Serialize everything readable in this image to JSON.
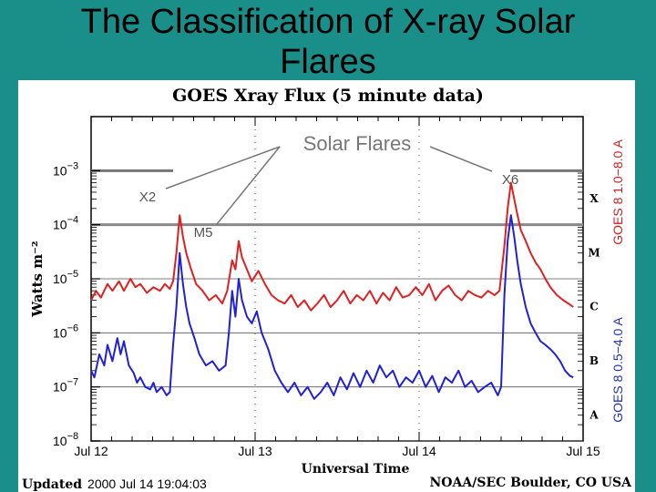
{
  "slide": {
    "title": "The Classification of X-ray Solar Flares"
  },
  "chart_data": {
    "type": "line",
    "title": "GOES Xray Flux (5 minute data)",
    "xlabel": "Universal Time",
    "ylabel": "Watts m⁻²",
    "x_tick_labels": [
      "Jul 12",
      "Jul 13",
      "Jul 14",
      "Jul 15"
    ],
    "x_range": [
      "2000-07-12 00:00",
      "2000-07-15 00:00"
    ],
    "y_scale": "log",
    "y_range": [
      1e-08,
      0.01
    ],
    "y_tick_labels": [
      {
        "base": "10",
        "exp": "−3",
        "value": 0.001
      },
      {
        "base": "10",
        "exp": "−4",
        "value": 0.0001
      },
      {
        "base": "10",
        "exp": "−5",
        "value": 1e-05
      },
      {
        "base": "10",
        "exp": "−6",
        "value": 1e-06
      },
      {
        "base": "10",
        "exp": "−7",
        "value": 1e-07
      },
      {
        "base": "10",
        "exp": "−8",
        "value": 1e-08
      }
    ],
    "flare_classes": [
      {
        "label": "X",
        "value": 0.0001
      },
      {
        "label": "M",
        "value": 1e-05
      },
      {
        "label": "C",
        "value": 1e-06
      },
      {
        "label": "B",
        "value": 1e-07
      },
      {
        "label": "A",
        "value": 1e-08
      }
    ],
    "right_labels": [
      {
        "text": "GOES 8 1.0−8.0 A",
        "color": "#d42020"
      },
      {
        "text": "GOES 8 0.5−4.0 A",
        "color": "#2030c8"
      }
    ],
    "footer_left": {
      "label": "Updated",
      "value": "2000 Jul 14 19:04:03"
    },
    "footer_right": "NOAA/SEC Boulder, CO USA",
    "annotations": {
      "heading": "Solar Flares",
      "flares": [
        {
          "label": "X2",
          "day": 0.55,
          "flux": 0.00015
        },
        {
          "label": "M5",
          "day": 0.9,
          "flux": 5e-05
        },
        {
          "label": "X6",
          "day": 2.57,
          "flux": 0.0006
        }
      ]
    },
    "series": [
      {
        "name": "GOES 8 1.0−8.0 A",
        "color": "#e02020",
        "points": [
          [
            0.0,
            4e-06
          ],
          [
            0.03,
            6e-06
          ],
          [
            0.06,
            4.5e-06
          ],
          [
            0.1,
            8e-06
          ],
          [
            0.13,
            6e-06
          ],
          [
            0.17,
            9e-06
          ],
          [
            0.2,
            6e-06
          ],
          [
            0.24,
            1e-05
          ],
          [
            0.27,
            7e-06
          ],
          [
            0.3,
            8e-06
          ],
          [
            0.34,
            5.5e-06
          ],
          [
            0.38,
            7e-06
          ],
          [
            0.42,
            6e-06
          ],
          [
            0.45,
            8e-06
          ],
          [
            0.48,
            6.5e-06
          ],
          [
            0.5,
            9e-06
          ],
          [
            0.52,
            3e-05
          ],
          [
            0.54,
            0.00015
          ],
          [
            0.56,
            6e-05
          ],
          [
            0.58,
            3e-05
          ],
          [
            0.61,
            1.5e-05
          ],
          [
            0.64,
            8e-06
          ],
          [
            0.68,
            6e-06
          ],
          [
            0.72,
            4e-06
          ],
          [
            0.76,
            5e-06
          ],
          [
            0.8,
            3.5e-06
          ],
          [
            0.83,
            6e-06
          ],
          [
            0.86,
            2.2e-05
          ],
          [
            0.88,
            1.5e-05
          ],
          [
            0.9,
            5e-05
          ],
          [
            0.92,
            2.5e-05
          ],
          [
            0.95,
            1.5e-05
          ],
          [
            0.98,
            9e-06
          ],
          [
            1.02,
            1.4e-05
          ],
          [
            1.06,
            8e-06
          ],
          [
            1.1,
            5e-06
          ],
          [
            1.14,
            4e-06
          ],
          [
            1.18,
            3.5e-06
          ],
          [
            1.22,
            5e-06
          ],
          [
            1.26,
            3e-06
          ],
          [
            1.3,
            4e-06
          ],
          [
            1.34,
            2.6e-06
          ],
          [
            1.38,
            3.5e-06
          ],
          [
            1.42,
            5e-06
          ],
          [
            1.46,
            3e-06
          ],
          [
            1.5,
            4e-06
          ],
          [
            1.54,
            6e-06
          ],
          [
            1.58,
            3.5e-06
          ],
          [
            1.62,
            5e-06
          ],
          [
            1.66,
            4e-06
          ],
          [
            1.7,
            6e-06
          ],
          [
            1.74,
            3.5e-06
          ],
          [
            1.78,
            5.5e-06
          ],
          [
            1.82,
            4e-06
          ],
          [
            1.86,
            7e-06
          ],
          [
            1.9,
            4.5e-06
          ],
          [
            1.94,
            5e-06
          ],
          [
            1.98,
            7e-06
          ],
          [
            2.02,
            5e-06
          ],
          [
            2.06,
            8e-06
          ],
          [
            2.1,
            4e-06
          ],
          [
            2.14,
            6e-06
          ],
          [
            2.18,
            7.5e-06
          ],
          [
            2.22,
            5e-06
          ],
          [
            2.26,
            4e-06
          ],
          [
            2.3,
            6e-06
          ],
          [
            2.34,
            5e-06
          ],
          [
            2.38,
            4.5e-06
          ],
          [
            2.42,
            6e-06
          ],
          [
            2.46,
            5e-06
          ],
          [
            2.49,
            6e-06
          ],
          [
            2.52,
            4e-05
          ],
          [
            2.54,
            0.0002
          ],
          [
            2.56,
            0.0006
          ],
          [
            2.58,
            0.0003
          ],
          [
            2.6,
            0.00015
          ],
          [
            2.62,
            8e-05
          ],
          [
            2.65,
            5e-05
          ],
          [
            2.68,
            3e-05
          ],
          [
            2.71,
            2e-05
          ],
          [
            2.74,
            1.5e-05
          ],
          [
            2.77,
            1e-05
          ],
          [
            2.8,
            7e-06
          ],
          [
            2.84,
            5e-06
          ],
          [
            2.88,
            4e-06
          ],
          [
            2.91,
            3.5e-06
          ],
          [
            2.94,
            3e-06
          ]
        ]
      },
      {
        "name": "GOES 8 0.5−4.0 A",
        "color": "#2020d8",
        "points": [
          [
            0.0,
            2e-07
          ],
          [
            0.02,
            1.5e-07
          ],
          [
            0.05,
            4e-07
          ],
          [
            0.08,
            2.5e-07
          ],
          [
            0.1,
            6e-07
          ],
          [
            0.13,
            3e-07
          ],
          [
            0.16,
            8e-07
          ],
          [
            0.18,
            4e-07
          ],
          [
            0.2,
            7e-07
          ],
          [
            0.23,
            2.5e-07
          ],
          [
            0.26,
            1.8e-07
          ],
          [
            0.28,
            1.2e-07
          ],
          [
            0.3,
            1.5e-07
          ],
          [
            0.33,
            1e-07
          ],
          [
            0.36,
            9e-08
          ],
          [
            0.38,
            1.2e-07
          ],
          [
            0.4,
            8e-08
          ],
          [
            0.43,
            1e-07
          ],
          [
            0.46,
            7e-08
          ],
          [
            0.48,
            8e-08
          ],
          [
            0.5,
            6e-07
          ],
          [
            0.52,
            3e-06
          ],
          [
            0.54,
            3e-05
          ],
          [
            0.56,
            8e-06
          ],
          [
            0.58,
            3e-06
          ],
          [
            0.6,
            1.5e-06
          ],
          [
            0.63,
            8e-07
          ],
          [
            0.66,
            4e-07
          ],
          [
            0.7,
            2.5e-07
          ],
          [
            0.74,
            3e-07
          ],
          [
            0.78,
            2e-07
          ],
          [
            0.82,
            2.5e-07
          ],
          [
            0.84,
            1e-06
          ],
          [
            0.86,
            6e-06
          ],
          [
            0.88,
            2e-06
          ],
          [
            0.9,
            1e-05
          ],
          [
            0.92,
            4e-06
          ],
          [
            0.95,
            2e-06
          ],
          [
            0.98,
            1.5e-06
          ],
          [
            1.01,
            2.5e-06
          ],
          [
            1.04,
            1e-06
          ],
          [
            1.08,
            5e-07
          ],
          [
            1.12,
            2e-07
          ],
          [
            1.16,
            1.2e-07
          ],
          [
            1.2,
            8e-08
          ],
          [
            1.24,
            1.2e-07
          ],
          [
            1.28,
            7e-08
          ],
          [
            1.32,
            1e-07
          ],
          [
            1.36,
            6e-08
          ],
          [
            1.4,
            8e-08
          ],
          [
            1.44,
            1.2e-07
          ],
          [
            1.48,
            7e-08
          ],
          [
            1.52,
            1.5e-07
          ],
          [
            1.56,
            9e-08
          ],
          [
            1.6,
            1.8e-07
          ],
          [
            1.64,
            1e-07
          ],
          [
            1.68,
            2e-07
          ],
          [
            1.72,
            1.2e-07
          ],
          [
            1.76,
            2.5e-07
          ],
          [
            1.8,
            1.5e-07
          ],
          [
            1.84,
            2e-07
          ],
          [
            1.88,
            1e-07
          ],
          [
            1.92,
            1.5e-07
          ],
          [
            1.96,
            1.2e-07
          ],
          [
            2.0,
            2e-07
          ],
          [
            2.04,
            1e-07
          ],
          [
            2.08,
            1.6e-07
          ],
          [
            2.12,
            8e-08
          ],
          [
            2.16,
            1.5e-07
          ],
          [
            2.2,
            1.2e-07
          ],
          [
            2.24,
            2e-07
          ],
          [
            2.28,
            1e-07
          ],
          [
            2.32,
            1.3e-07
          ],
          [
            2.36,
            8e-08
          ],
          [
            2.4,
            1e-07
          ],
          [
            2.44,
            1.2e-07
          ],
          [
            2.48,
            7e-08
          ],
          [
            2.5,
            1e-07
          ],
          [
            2.52,
            5e-06
          ],
          [
            2.54,
            5e-05
          ],
          [
            2.56,
            0.00015
          ],
          [
            2.58,
            6e-05
          ],
          [
            2.6,
            2e-05
          ],
          [
            2.62,
            8e-06
          ],
          [
            2.65,
            3e-06
          ],
          [
            2.68,
            1.5e-06
          ],
          [
            2.71,
            1e-06
          ],
          [
            2.74,
            7e-07
          ],
          [
            2.77,
            6e-07
          ],
          [
            2.8,
            5e-07
          ],
          [
            2.83,
            4e-07
          ],
          [
            2.86,
            3e-07
          ],
          [
            2.89,
            2e-07
          ],
          [
            2.92,
            1.6e-07
          ],
          [
            2.94,
            1.5e-07
          ]
        ]
      }
    ]
  }
}
